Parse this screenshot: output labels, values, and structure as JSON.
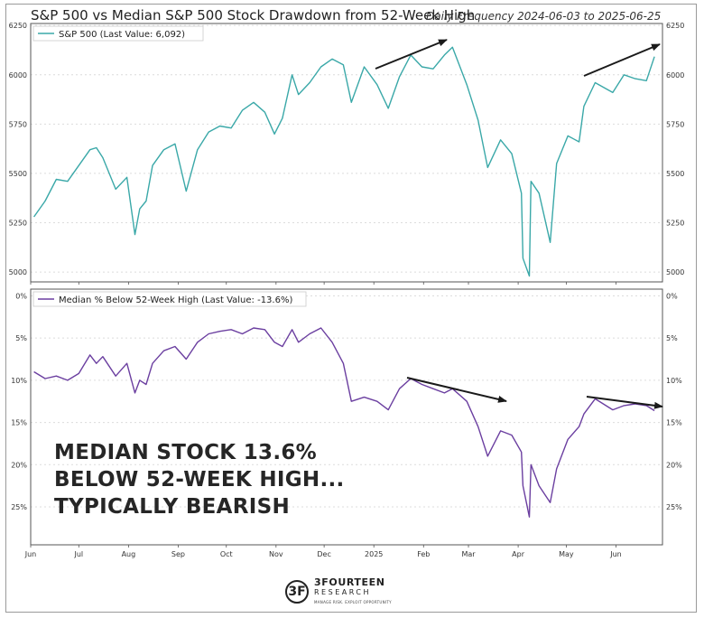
{
  "title": "S&P 500 vs Median S&P 500 Stock Drawdown from 52-Week High",
  "subtitle": "Daily Frequency 2024-06-03 to 2025-06-25",
  "annotation_lines": [
    "MEDIAN STOCK 13.6%",
    "BELOW 52-WEEK HIGH...",
    "TYPICALLY BEARISH"
  ],
  "logo": {
    "name": "3FOURTEEN",
    "sub": "RESEARCH",
    "tagline": "MANAGE RISK. EXPLOIT OPPORTUNITY",
    "mark": "3F"
  },
  "colors": {
    "sp500": "#3aa8a8",
    "median": "#6b3fa0",
    "arrow": "#1a1a1a",
    "grid": "#dcdcdc"
  },
  "chart_data": [
    {
      "type": "line",
      "series": [
        {
          "name": "S&P 500 (Last Value: 6,092)",
          "x": [
            "2024-06-03",
            "2024-06-10",
            "2024-06-17",
            "2024-06-24",
            "2024-07-01",
            "2024-07-08",
            "2024-07-12",
            "2024-07-16",
            "2024-07-24",
            "2024-07-31",
            "2024-08-05",
            "2024-08-08",
            "2024-08-12",
            "2024-08-16",
            "2024-08-23",
            "2024-08-30",
            "2024-09-06",
            "2024-09-13",
            "2024-09-20",
            "2024-09-27",
            "2024-10-04",
            "2024-10-11",
            "2024-10-18",
            "2024-10-25",
            "2024-10-31",
            "2024-11-05",
            "2024-11-11",
            "2024-11-15",
            "2024-11-22",
            "2024-11-29",
            "2024-12-06",
            "2024-12-13",
            "2024-12-18",
            "2024-12-26",
            "2025-01-03",
            "2025-01-10",
            "2025-01-17",
            "2025-01-24",
            "2025-01-31",
            "2025-02-07",
            "2025-02-14",
            "2025-02-19",
            "2025-02-28",
            "2025-03-07",
            "2025-03-13",
            "2025-03-21",
            "2025-03-28",
            "2025-04-03",
            "2025-04-04",
            "2025-04-08",
            "2025-04-09",
            "2025-04-14",
            "2025-04-21",
            "2025-04-25",
            "2025-05-02",
            "2025-05-09",
            "2025-05-12",
            "2025-05-19",
            "2025-05-30",
            "2025-06-06",
            "2025-06-13",
            "2025-06-20",
            "2025-06-25"
          ],
          "values": [
            5280,
            5360,
            5470,
            5460,
            5540,
            5620,
            5630,
            5580,
            5420,
            5480,
            5190,
            5320,
            5360,
            5540,
            5620,
            5650,
            5410,
            5620,
            5710,
            5740,
            5730,
            5820,
            5860,
            5810,
            5700,
            5780,
            6000,
            5900,
            5960,
            6040,
            6080,
            6050,
            5860,
            6040,
            5950,
            5830,
            5990,
            6100,
            6040,
            6030,
            6100,
            6140,
            5950,
            5770,
            5530,
            5670,
            5600,
            5400,
            5070,
            4980,
            5460,
            5400,
            5150,
            5550,
            5690,
            5660,
            5840,
            5960,
            5910,
            6000,
            5980,
            5970,
            6092
          ]
        }
      ],
      "ylim": [
        4950,
        6260
      ],
      "yticks": [
        "5000",
        "5250",
        "5500",
        "5750",
        "6000",
        "6250"
      ],
      "legend": "top-left"
    },
    {
      "type": "line",
      "series": [
        {
          "name": "Median % Below 52-Week High (Last Value: -13.6%)",
          "x": [
            "2024-06-03",
            "2024-06-10",
            "2024-06-17",
            "2024-06-24",
            "2024-07-01",
            "2024-07-08",
            "2024-07-12",
            "2024-07-16",
            "2024-07-24",
            "2024-07-31",
            "2024-08-05",
            "2024-08-08",
            "2024-08-12",
            "2024-08-16",
            "2024-08-23",
            "2024-08-30",
            "2024-09-06",
            "2024-09-13",
            "2024-09-20",
            "2024-09-27",
            "2024-10-04",
            "2024-10-11",
            "2024-10-18",
            "2024-10-25",
            "2024-10-31",
            "2024-11-05",
            "2024-11-11",
            "2024-11-15",
            "2024-11-22",
            "2024-11-29",
            "2024-12-06",
            "2024-12-13",
            "2024-12-18",
            "2024-12-26",
            "2025-01-03",
            "2025-01-10",
            "2025-01-17",
            "2025-01-24",
            "2025-01-31",
            "2025-02-07",
            "2025-02-14",
            "2025-02-19",
            "2025-02-28",
            "2025-03-07",
            "2025-03-13",
            "2025-03-21",
            "2025-03-28",
            "2025-04-03",
            "2025-04-04",
            "2025-04-08",
            "2025-04-09",
            "2025-04-14",
            "2025-04-21",
            "2025-04-25",
            "2025-05-02",
            "2025-05-09",
            "2025-05-12",
            "2025-05-19",
            "2025-05-30",
            "2025-06-06",
            "2025-06-13",
            "2025-06-20",
            "2025-06-25"
          ],
          "values": [
            -9.0,
            -9.8,
            -9.5,
            -10.0,
            -9.2,
            -7.0,
            -8.0,
            -7.2,
            -9.5,
            -8.0,
            -11.5,
            -10.0,
            -10.5,
            -8.0,
            -6.5,
            -6.0,
            -7.5,
            -5.5,
            -4.5,
            -4.2,
            -4.0,
            -4.5,
            -3.8,
            -4.0,
            -5.5,
            -6.0,
            -4.0,
            -5.5,
            -4.5,
            -3.8,
            -5.5,
            -8.0,
            -12.5,
            -12.0,
            -12.5,
            -13.5,
            -11.0,
            -9.8,
            -10.5,
            -11.0,
            -11.5,
            -11.0,
            -12.5,
            -15.5,
            -19.0,
            -16.0,
            -16.5,
            -18.5,
            -22.5,
            -26.2,
            -20.0,
            -22.5,
            -24.5,
            -20.5,
            -17.0,
            -15.5,
            -14.0,
            -12.2,
            -13.5,
            -13.0,
            -12.8,
            -13.0,
            -13.6
          ]
        }
      ],
      "ylim": [
        -29.5,
        0.8
      ],
      "yticks": [
        "0%",
        "5%",
        "10%",
        "15%",
        "20%",
        "25%"
      ],
      "legend": "top-left"
    }
  ],
  "x_tick_labels": [
    "Jun",
    "Jul",
    "Aug",
    "Sep",
    "Oct",
    "Nov",
    "Dec",
    "2025",
    "Feb",
    "Mar",
    "Apr",
    "May",
    "Jun"
  ]
}
